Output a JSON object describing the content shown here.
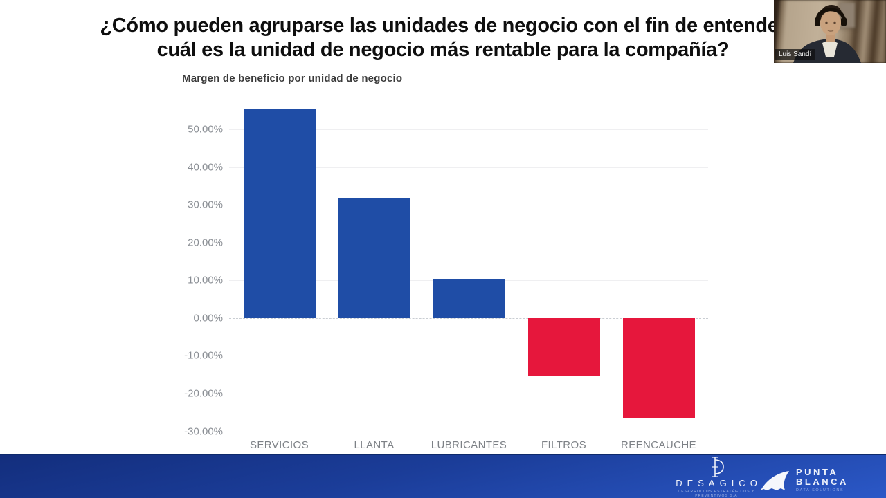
{
  "title": {
    "line1": "¿Cómo pueden agruparse las unidades de negocio con el fin de entender",
    "line2": "cuál es la unidad de negocio más rentable para la compañía?"
  },
  "chart_data": {
    "type": "bar",
    "title": "Margen de beneficio por unidad de negocio",
    "categories": [
      "SERVICIOS",
      "LLANTA",
      "LUBRICANTES",
      "FILTROS",
      "REENCAUCHE"
    ],
    "values": [
      55.4,
      31.9,
      10.4,
      -15.4,
      -26.4
    ],
    "y_ticks": [
      50,
      40,
      30,
      20,
      10,
      0,
      -10,
      -20,
      -30
    ],
    "y_tick_labels": [
      "50.00%",
      "40.00%",
      "30.00%",
      "20.00%",
      "10.00%",
      "0.00%",
      "-10.00%",
      "-20.00%",
      "-30.00%"
    ],
    "ylim": [
      -31,
      57.5
    ],
    "xlabel": "",
    "ylabel": "",
    "grid": true,
    "legend": false,
    "positive_color": "#1f4da6",
    "negative_color": "#e6173c"
  },
  "webcam": {
    "name": "Luis Sandí"
  },
  "footer": {
    "desagico": {
      "name": "DESAGICO",
      "tagline": "DESARROLLOS ESTRATÉGICOS Y PREVENTIVOS S.A"
    },
    "punta_blanca": {
      "line1": "PUNTA",
      "line2": "BLANCA",
      "tagline": "DATA SOLUTIONS"
    }
  }
}
